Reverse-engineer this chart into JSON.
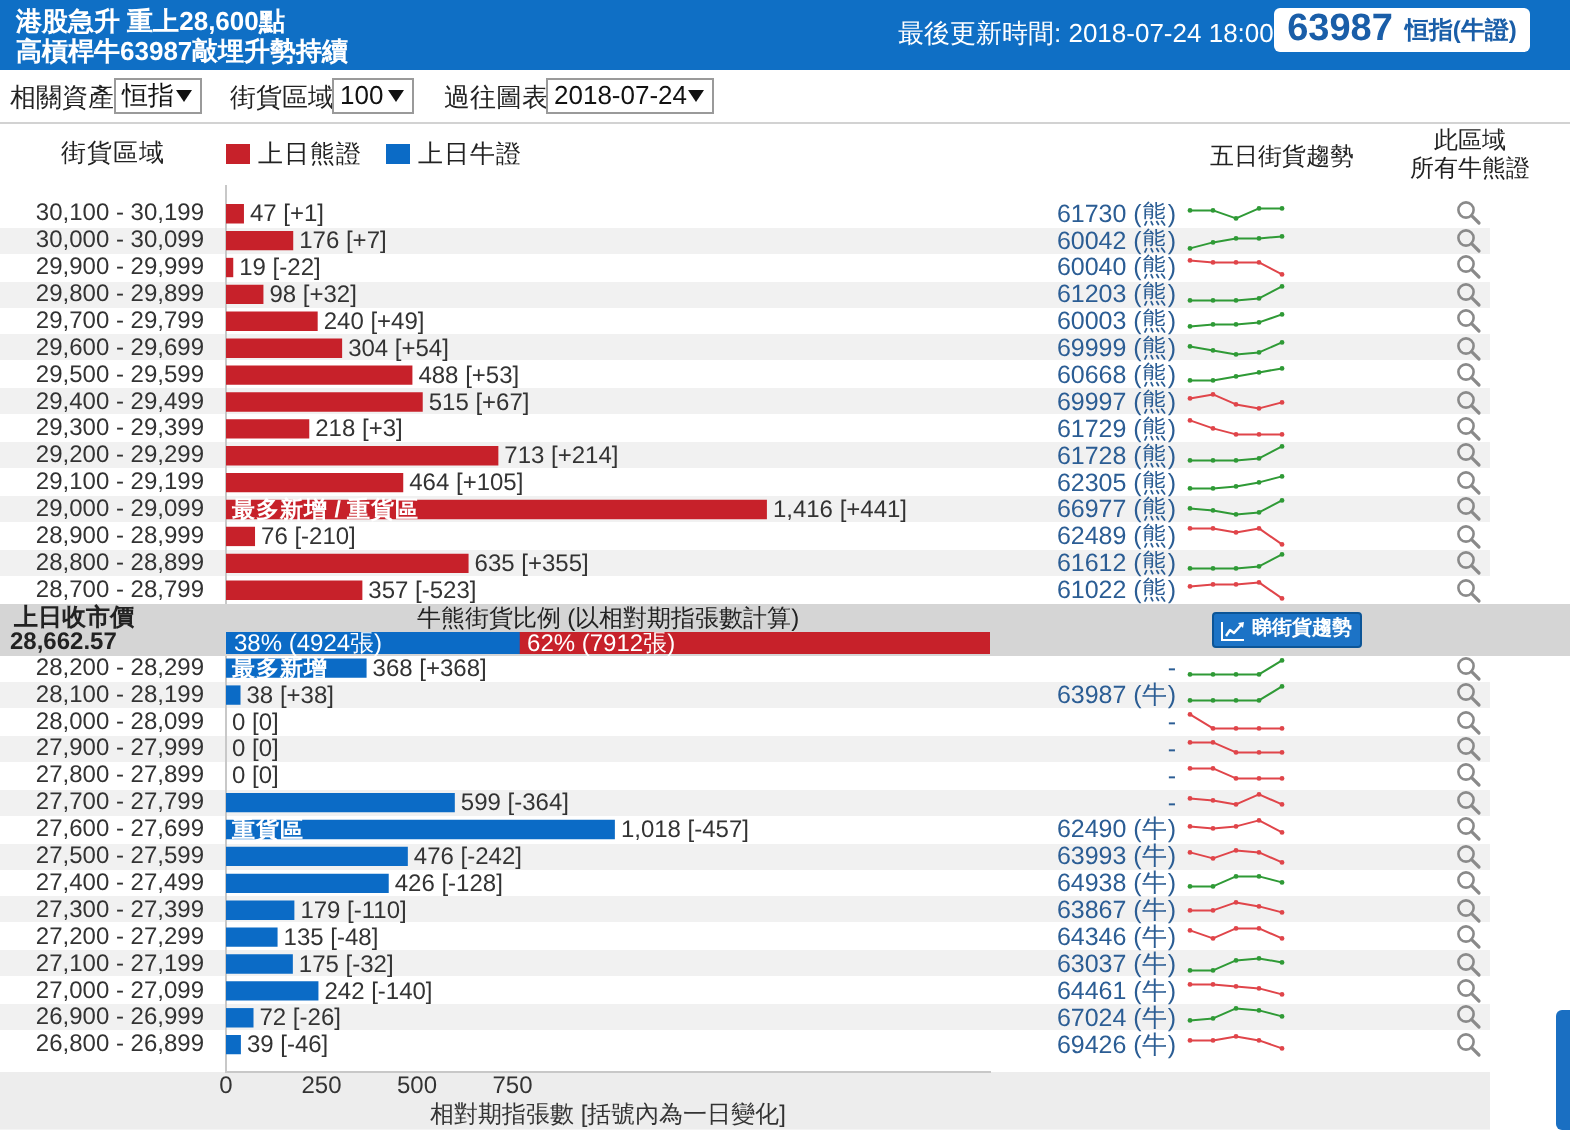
{
  "chart_data": [
    {
      "type": "bar",
      "orientation": "horizontal",
      "title": "港股急升 重上28,600點",
      "subtitle": "高槓桿牛63987敲埋升勢持續",
      "ylabel": "街貨區域",
      "xlabel": "相對期指張數 [括號內為一日變化]",
      "legend": "top left",
      "categories": [
        "30,100 - 30,199",
        "30,000 - 30,099",
        "29,900 - 29,999",
        "29,800 - 29,899",
        "29,700 - 29,799",
        "29,600 - 29,699",
        "29,500 - 29,599",
        "29,400 - 29,499",
        "29,300 - 29,399",
        "29,200 - 29,299",
        "29,100 - 29,199",
        "29,000 - 29,099",
        "28,900 - 28,999",
        "28,800 - 28,899",
        "28,700 - 28,799",
        null,
        "28,200 - 28,299",
        "28,100 - 28,199",
        "28,000 - 28,099",
        "27,900 - 27,999",
        "27,800 - 27,899",
        "27,700 - 27,799",
        "27,600 - 27,699",
        "27,500 - 27,599",
        "27,400 - 27,499",
        "27,300 - 27,399",
        "27,200 - 27,299",
        "27,100 - 27,199",
        "27,000 - 27,099",
        "26,900 - 26,999",
        "26,800 - 26,899"
      ],
      "series": [
        {
          "name": "上日熊證",
          "color": "#c7212a",
          "values": [
            47,
            176,
            19,
            98,
            240,
            304,
            488,
            515,
            218,
            713,
            464,
            1416,
            76,
            635,
            357,
            null,
            null,
            null,
            null,
            null,
            null,
            null,
            null,
            null,
            null,
            null,
            null,
            null,
            null,
            null,
            null
          ],
          "value_labels": [
            "47 [+1]",
            "176 [+7]",
            "19 [-22]",
            "98 [+32]",
            "240 [+49]",
            "304 [+54]",
            "488 [+53]",
            "515 [+67]",
            "218 [+3]",
            "713 [+214]",
            "464 [+105]",
            "1,416 [+441]",
            "76 [-210]",
            "635 [+355]",
            "357 [-523]",
            null,
            null,
            null,
            null,
            null,
            null,
            null,
            null,
            null,
            null,
            null,
            null,
            null,
            null,
            null,
            null
          ]
        },
        {
          "name": "上日牛證",
          "color": "#0b6bc6",
          "values": [
            null,
            null,
            null,
            null,
            null,
            null,
            null,
            null,
            null,
            null,
            null,
            null,
            null,
            null,
            null,
            null,
            368,
            38,
            0,
            0,
            0,
            599,
            1018,
            476,
            426,
            179,
            135,
            175,
            242,
            72,
            39
          ],
          "value_labels": [
            null,
            null,
            null,
            null,
            null,
            null,
            null,
            null,
            null,
            null,
            null,
            null,
            null,
            null,
            null,
            null,
            "368 [+368]",
            "38 [+38]",
            "0 [0]",
            "0 [0]",
            "0 [0]",
            "599 [-364]",
            "1,018 [-457]",
            "476 [-242]",
            "426 [-128]",
            "179 [-110]",
            "135 [-48]",
            "175 [-32]",
            "242 [-140]",
            "72 [-26]",
            "39 [-46]"
          ]
        }
      ],
      "xlim": [
        0,
        2000
      ],
      "xticks": [
        0,
        250,
        500,
        750
      ],
      "annotations": [
        "最後更新時間: 2018-07-24 18:00",
        "63987",
        "恒指(牛證)",
        "相關資產",
        "恒指",
        "街貨區域",
        "100",
        "過往圖表",
        "2018-07-24",
        "五日街貨趨勢",
        "此區域",
        "所有牛熊證",
        "61730 (熊)",
        "60042 (熊)",
        "60040 (熊)",
        "61203 (熊)",
        "60003 (熊)",
        "69999 (熊)",
        "60668 (熊)",
        "69997 (熊)",
        "61729 (熊)",
        "61728 (熊)",
        "62305 (熊)",
        "66977 (熊)",
        "62489 (熊)",
        "61612 (熊)",
        "61022 (熊)",
        "-",
        "63987 (牛)",
        "-",
        "-",
        "-",
        "-",
        "62490 (牛)",
        "63993 (牛)",
        "64938 (牛)",
        "63867 (牛)",
        "64346 (牛)",
        "63037 (牛)",
        "64461 (牛)",
        "67024 (牛)",
        "69426 (牛)",
        {
          "text": "最多新增 / 重貨區",
          "y": "29,000 - 29,099"
        },
        {
          "text": "最多新增",
          "y": "28,200 - 28,299"
        },
        {
          "text": "重貨區",
          "y": "27,600 - 27,699"
        }
      ]
    },
    {
      "type": "bar",
      "orientation": "horizontal",
      "stacked": true,
      "title": "牛熊街貨比例 (以相對期指張數計算)",
      "categories": [
        null
      ],
      "series": [
        {
          "color": "#0b6bc6",
          "values": [
            4924
          ],
          "value_labels": [
            "38% (4924張)"
          ]
        },
        {
          "color": "#c7212a",
          "values": [
            7912
          ],
          "value_labels": [
            "62% (7912張)"
          ]
        }
      ],
      "tick_labels": false,
      "annotations": [
        "上日收市價",
        "28,662.57",
        "睇街貨趨勢"
      ]
    }
  ]
}
